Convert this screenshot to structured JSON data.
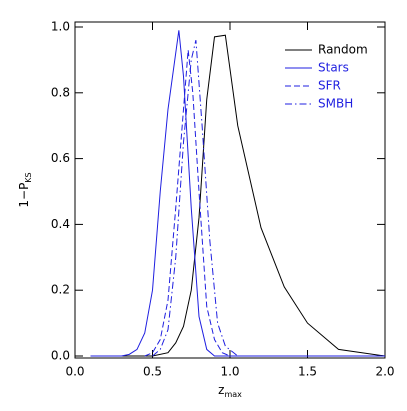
{
  "chart_data": {
    "type": "line",
    "x_label": "z",
    "x_label_sub": "max",
    "y_label": "1−P",
    "y_label_sub": "KS",
    "xlim": [
      0,
      2.0
    ],
    "ylim": [
      0,
      1.0
    ],
    "xticks": [
      {
        "value": 0,
        "label": "0.0"
      },
      {
        "value": 0.5,
        "label": "0.5"
      },
      {
        "value": 1.0,
        "label": "1.0"
      },
      {
        "value": 1.5,
        "label": "1.5"
      },
      {
        "value": 2.0,
        "label": "2.0"
      }
    ],
    "yticks": [
      {
        "value": 0,
        "label": "0.0"
      },
      {
        "value": 0.2,
        "label": "0.2"
      },
      {
        "value": 0.4,
        "label": "0.4"
      },
      {
        "value": 0.6,
        "label": "0.6"
      },
      {
        "value": 0.8,
        "label": "0.8"
      },
      {
        "value": 1.0,
        "label": "1.0"
      }
    ],
    "legend": "upper right",
    "series": [
      {
        "name": "Random",
        "color": "#000000",
        "linestyle": "solid",
        "x": [
          0.1,
          0.5,
          0.6,
          0.65,
          0.7,
          0.75,
          0.8,
          0.85,
          0.9,
          0.97,
          1.05,
          1.2,
          1.35,
          1.5,
          1.7,
          2.0
        ],
        "values": [
          0,
          0,
          0.01,
          0.04,
          0.09,
          0.2,
          0.42,
          0.78,
          0.97,
          0.975,
          0.7,
          0.39,
          0.21,
          0.1,
          0.02,
          0
        ]
      },
      {
        "name": "Stars",
        "color": "#1f1fe0",
        "linestyle": "solid",
        "x": [
          0.1,
          0.3,
          0.35,
          0.4,
          0.45,
          0.5,
          0.55,
          0.6,
          0.67,
          0.7,
          0.75,
          0.8,
          0.85,
          0.9,
          2.0
        ],
        "values": [
          0,
          0,
          0.005,
          0.02,
          0.07,
          0.2,
          0.5,
          0.75,
          0.99,
          0.85,
          0.45,
          0.12,
          0.02,
          0,
          0
        ]
      },
      {
        "name": "SFR",
        "color": "#1f1fe0",
        "linestyle": "dashed",
        "x": [
          0.45,
          0.5,
          0.55,
          0.6,
          0.65,
          0.7,
          0.73,
          0.76,
          0.8,
          0.85,
          0.9,
          0.95,
          1.0
        ],
        "values": [
          0,
          0.01,
          0.05,
          0.17,
          0.45,
          0.75,
          0.93,
          0.8,
          0.5,
          0.15,
          0.05,
          0.01,
          0
        ]
      },
      {
        "name": "SMBH",
        "color": "#1f1fe0",
        "linestyle": "dashdot",
        "x": [
          0.5,
          0.55,
          0.6,
          0.65,
          0.7,
          0.75,
          0.78,
          0.82,
          0.87,
          0.92,
          0.97,
          1.05
        ],
        "values": [
          0,
          0.02,
          0.08,
          0.3,
          0.65,
          0.9,
          0.96,
          0.7,
          0.35,
          0.1,
          0.03,
          0
        ]
      }
    ]
  }
}
